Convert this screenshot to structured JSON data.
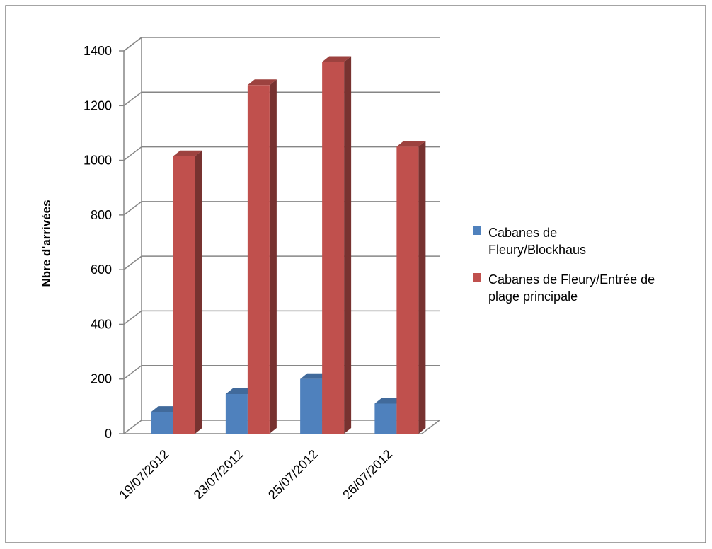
{
  "chart_data": {
    "type": "bar",
    "three_d": true,
    "title": "",
    "xlabel": "",
    "ylabel": "Nbre d'arrivées",
    "ylim": [
      0,
      1400
    ],
    "yticks": [
      0,
      200,
      400,
      600,
      800,
      1000,
      1200,
      1400
    ],
    "grid": true,
    "legend_position": "right",
    "categories": [
      "19/07/2012",
      "23/07/2012",
      "25/07/2012",
      "26/07/2012"
    ],
    "series": [
      {
        "name": "Cabanes de Fleury/Blockhaus",
        "values": [
          80,
          145,
          200,
          110
        ],
        "color": "#4F81BD"
      },
      {
        "name": "Cabanes de Fleury/Entrée de plage principale",
        "values": [
          1015,
          1275,
          1360,
          1050
        ],
        "color": "#C0504D"
      }
    ]
  },
  "legend": {
    "items": [
      {
        "lines": [
          "Cabanes de",
          "Fleury/Blockhaus"
        ]
      },
      {
        "lines": [
          "Cabanes de Fleury/Entrée de",
          "plage principale"
        ]
      }
    ]
  }
}
